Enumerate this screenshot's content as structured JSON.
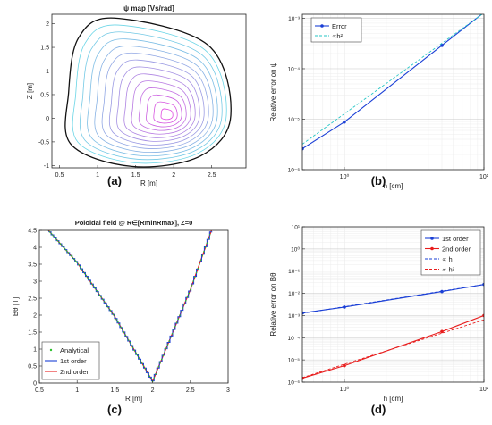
{
  "panel_labels": [
    "(a)",
    "(b)",
    "(c)",
    "(d)"
  ],
  "chart_data": [
    {
      "type": "contour",
      "title": "ψ map [Vs/rad]",
      "xlabel": "R [m]",
      "ylabel": "Z [m]",
      "xlim": [
        0.4,
        2.95
      ],
      "ylim": [
        -1.05,
        2.2
      ],
      "xticks": [
        "0.5",
        "1",
        "1.5",
        "2",
        "2.5"
      ],
      "yticks": [
        "-1",
        "-0.5",
        "0",
        "0.5",
        "1",
        "1.5",
        "2"
      ],
      "magnetic_axis": [
        1.93,
        0.05
      ],
      "boundary": {
        "r_inner": 0.62,
        "r_outer": 2.75,
        "z_top": 2.12,
        "z_bottom": -1.02,
        "r_top": 1.22,
        "r_bottom": 1.45
      },
      "contour_levels": 13,
      "colormap": [
        "#5fe0e6",
        "#e04be0"
      ],
      "grid": false
    },
    {
      "type": "line",
      "xscale": "log",
      "yscale": "log",
      "xlabel": "h [cm]",
      "ylabel": "Relative error on ψ",
      "xlim": [
        0.5,
        10
      ],
      "ylim": [
        1e-06,
        0.0012
      ],
      "xticks": [
        "10⁰",
        "10¹"
      ],
      "yticks": [
        "10⁻⁶",
        "10⁻⁵",
        "10⁻⁴",
        "10⁻³"
      ],
      "legend": "top-left",
      "series": [
        {
          "name": "Error",
          "x": [
            0.5,
            1,
            5,
            10
          ],
          "y": [
            2.6e-06,
            8.8e-06,
            0.00029,
            0.0013
          ],
          "color": "#1a3fd6",
          "style": "solid-markers"
        },
        {
          "name": "∝h²",
          "x": [
            0.5,
            10
          ],
          "y": [
            3.2e-06,
            0.00128
          ],
          "color": "#26c6c6",
          "style": "dashed"
        }
      ],
      "grid": true
    },
    {
      "type": "line",
      "title": "Poloidal field @ R∈[RminRmax], Z=0",
      "xlabel": "R [m]",
      "ylabel": "Bθ [T]",
      "xlim": [
        0.5,
        3
      ],
      "ylim": [
        0,
        4.5
      ],
      "xticks": [
        "0.5",
        "1",
        "1.5",
        "2",
        "2.5",
        "3"
      ],
      "yticks": [
        "0",
        "0.5",
        "1",
        "1.5",
        "2",
        "2.5",
        "3",
        "3.5",
        "4",
        "4.5"
      ],
      "legend": "bottom-left",
      "series": [
        {
          "name": "Analytical",
          "x": [
            0.62,
            1.0,
            1.5,
            2.0,
            2.5,
            2.78
          ],
          "y": [
            4.5,
            3.55,
            1.95,
            0.05,
            2.75,
            4.5
          ],
          "color": "#2cc12c",
          "style": "dots"
        },
        {
          "name": "1st order",
          "x": [
            0.62,
            1.0,
            1.5,
            2.0,
            2.5,
            2.78
          ],
          "y": [
            4.5,
            3.55,
            1.95,
            0.05,
            2.75,
            4.5
          ],
          "color": "#1a3fd6",
          "style": "step"
        },
        {
          "name": "2nd order",
          "x": [
            0.62,
            1.0,
            1.5,
            2.0,
            2.5,
            2.78
          ],
          "y": [
            4.5,
            3.55,
            1.95,
            0.05,
            2.75,
            4.5
          ],
          "color": "#e81c1c",
          "style": "solid"
        }
      ],
      "grid": false
    },
    {
      "type": "line",
      "xscale": "log",
      "yscale": "log",
      "xlabel": "h [cm]",
      "ylabel": "Relative error on Bθ",
      "xlim": [
        0.5,
        10
      ],
      "ylim": [
        1e-06,
        10
      ],
      "xticks": [
        "10⁰",
        "10¹"
      ],
      "yticks": [
        "10⁻⁶",
        "10⁻⁵",
        "10⁻⁴",
        "10⁻³",
        "10⁻²",
        "10⁻¹",
        "10⁰",
        "10¹"
      ],
      "legend": "top-right",
      "series": [
        {
          "name": "1st order",
          "x": [
            0.5,
            1,
            5,
            10
          ],
          "y": [
            0.0013,
            0.0024,
            0.012,
            0.025
          ],
          "color": "#1a3fd6",
          "style": "solid-markers"
        },
        {
          "name": "2nd order",
          "x": [
            0.5,
            1,
            5,
            10
          ],
          "y": [
            1.5e-06,
            5.5e-06,
            0.00019,
            0.001
          ],
          "color": "#e81c1c",
          "style": "solid-markers"
        },
        {
          "name": "∝ h",
          "x": [
            0.5,
            10
          ],
          "y": [
            0.00125,
            0.025
          ],
          "color": "#1a3fd6",
          "style": "dashed"
        },
        {
          "name": "∝ h²",
          "x": [
            0.5,
            10
          ],
          "y": [
            1.6e-06,
            0.00064
          ],
          "color": "#e81c1c",
          "style": "dashed"
        }
      ],
      "grid": true
    }
  ]
}
